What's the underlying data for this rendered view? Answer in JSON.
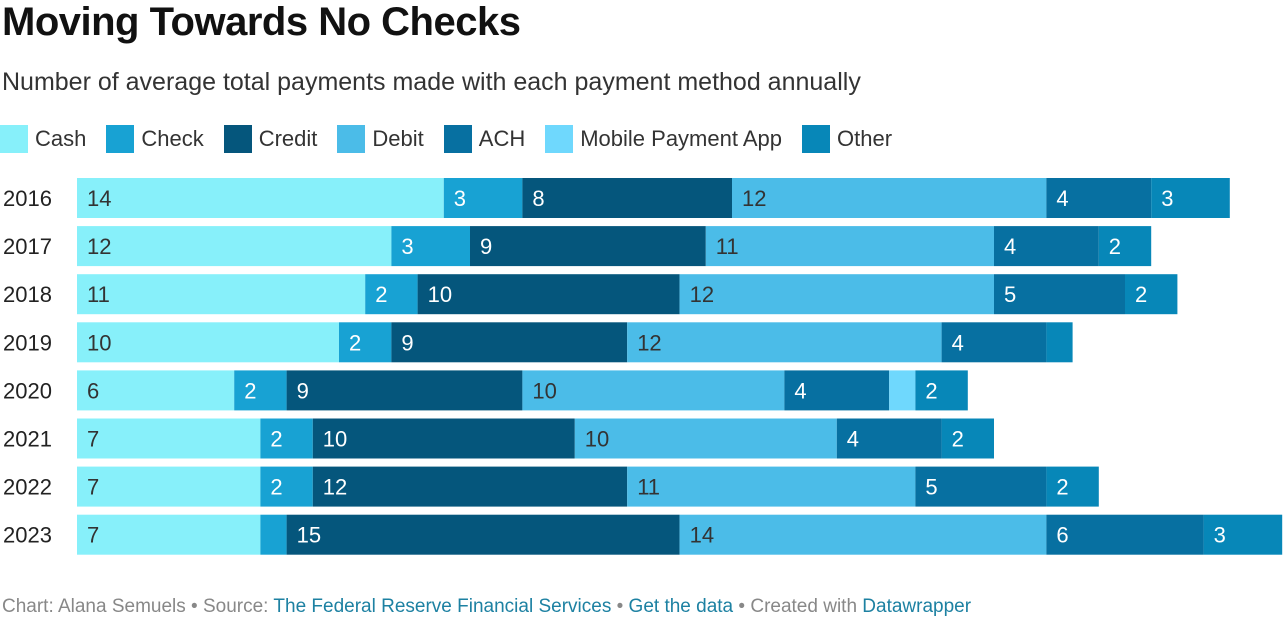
{
  "header": {
    "title": "Moving Towards No Checks",
    "subtitle": "Number of average total payments made with each payment method annually"
  },
  "footer": {
    "credit": "Chart: Alana Semuels",
    "source_prefix": "Source:",
    "source_name": "The Federal Reserve Financial Services",
    "get_data": "Get the data",
    "created_prefix": "Created with",
    "created_tool": "Datawrapper",
    "separator": "•"
  },
  "chart_data": {
    "type": "bar",
    "orientation": "horizontal",
    "stacked": true,
    "title": "Moving Towards No Checks",
    "subtitle": "Number of average total payments made with each payment method annually",
    "xlabel": "",
    "ylabel": "",
    "grid": false,
    "legend_position": "top-left",
    "categories": [
      "2016",
      "2017",
      "2018",
      "2019",
      "2020",
      "2021",
      "2022",
      "2023"
    ],
    "series": [
      {
        "name": "Cash",
        "color": "#87f0fa",
        "label_color": "#333333",
        "values": [
          14,
          12,
          11,
          10,
          6,
          7,
          7,
          7
        ],
        "labels": [
          "14",
          "12",
          "11",
          "10",
          "6",
          "7",
          "7",
          "7"
        ]
      },
      {
        "name": "Check",
        "color": "#18a2d3",
        "label_color": "#ffffff",
        "values": [
          3,
          3,
          2,
          2,
          2,
          2,
          2,
          1
        ],
        "labels": [
          "3",
          "3",
          "2",
          "2",
          "2",
          "2",
          "2",
          ""
        ]
      },
      {
        "name": "Credit",
        "color": "#05567c",
        "label_color": "#ffffff",
        "values": [
          8,
          9,
          10,
          9,
          9,
          10,
          12,
          15
        ],
        "labels": [
          "8",
          "9",
          "10",
          "9",
          "9",
          "10",
          "12",
          "15"
        ]
      },
      {
        "name": "Debit",
        "color": "#4bbce8",
        "label_color": "#333333",
        "values": [
          12,
          11,
          12,
          12,
          10,
          10,
          11,
          14
        ],
        "labels": [
          "12",
          "11",
          "12",
          "12",
          "10",
          "10",
          "11",
          "14"
        ]
      },
      {
        "name": "ACH",
        "color": "#0770a1",
        "label_color": "#ffffff",
        "values": [
          4,
          4,
          5,
          4,
          4,
          4,
          5,
          6
        ],
        "labels": [
          "4",
          "4",
          "5",
          "4",
          "4",
          "4",
          "5",
          "6"
        ]
      },
      {
        "name": "Mobile Payment App",
        "color": "#6fd8fd",
        "label_color": "#333333",
        "values": [
          0,
          0,
          0,
          0,
          1,
          0,
          0,
          0
        ],
        "labels": [
          "",
          "",
          "",
          "",
          "",
          "",
          "",
          ""
        ]
      },
      {
        "name": "Other",
        "color": "#0787b8",
        "label_color": "#ffffff",
        "values": [
          3,
          2,
          2,
          1,
          2,
          2,
          2,
          3
        ],
        "labels": [
          "3",
          "2",
          "2",
          "",
          "2",
          "2",
          "2",
          "3"
        ]
      }
    ]
  }
}
